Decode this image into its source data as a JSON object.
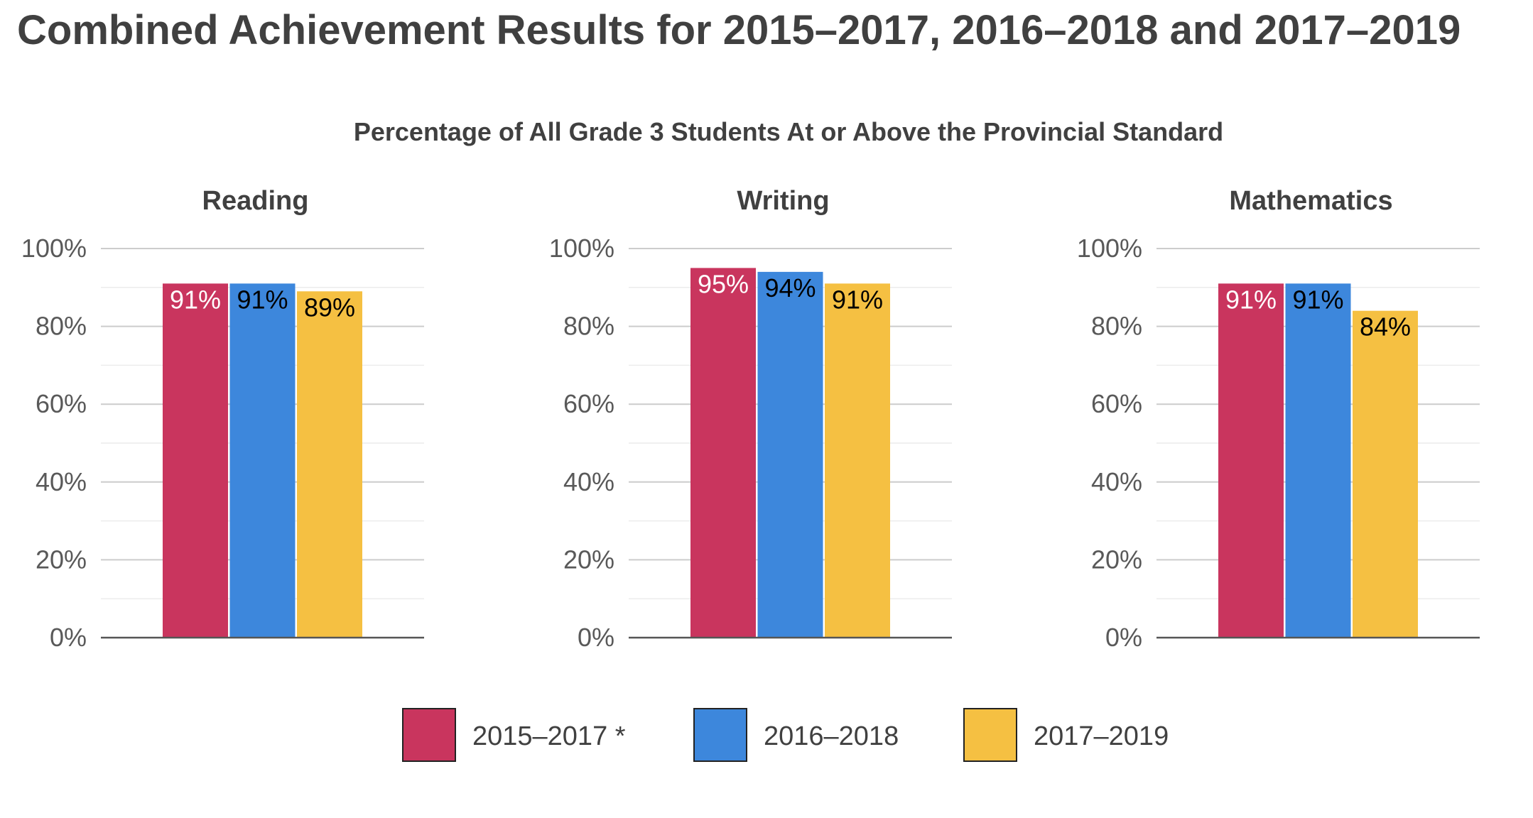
{
  "title": "Combined Achievement Results for 2015–2017, 2016–2018 and 2017–2019",
  "subtitle": "Percentage of All Grade 3 Students At or Above the Provincial Standard",
  "colors": {
    "series_1": "#c9355e",
    "series_2": "#3d87dc",
    "series_3": "#f5c042",
    "label_on_dark": "#ffffff",
    "label_on_light": "#000000"
  },
  "legend": [
    {
      "label": "2015–2017 *",
      "color": "#c9355e"
    },
    {
      "label": "2016–2018",
      "color": "#3d87dc"
    },
    {
      "label": "2017–2019",
      "color": "#f5c042"
    }
  ],
  "chart_data": [
    {
      "type": "bar",
      "title": "Reading",
      "ylim": [
        0,
        100
      ],
      "yticks": [
        "0%",
        "20%",
        "40%",
        "60%",
        "80%",
        "100%"
      ],
      "grid": true,
      "series": [
        {
          "name": "2015–2017 *",
          "values": [
            91
          ],
          "labels": [
            "91%"
          ]
        },
        {
          "name": "2016–2018",
          "values": [
            91
          ],
          "labels": [
            "91%"
          ]
        },
        {
          "name": "2017–2019",
          "values": [
            89
          ],
          "labels": [
            "89%"
          ]
        }
      ]
    },
    {
      "type": "bar",
      "title": "Writing",
      "ylim": [
        0,
        100
      ],
      "yticks": [
        "0%",
        "20%",
        "40%",
        "60%",
        "80%",
        "100%"
      ],
      "grid": true,
      "series": [
        {
          "name": "2015–2017 *",
          "values": [
            95
          ],
          "labels": [
            "95%"
          ]
        },
        {
          "name": "2016–2018",
          "values": [
            94
          ],
          "labels": [
            "94%"
          ]
        },
        {
          "name": "2017–2019",
          "values": [
            91
          ],
          "labels": [
            "91%"
          ]
        }
      ]
    },
    {
      "type": "bar",
      "title": "Mathematics",
      "ylim": [
        0,
        100
      ],
      "yticks": [
        "0%",
        "20%",
        "40%",
        "60%",
        "80%",
        "100%"
      ],
      "grid": true,
      "series": [
        {
          "name": "2015–2017 *",
          "values": [
            91
          ],
          "labels": [
            "91%"
          ]
        },
        {
          "name": "2016–2018",
          "values": [
            91
          ],
          "labels": [
            "91%"
          ]
        },
        {
          "name": "2017–2019",
          "values": [
            84
          ],
          "labels": [
            "84%"
          ]
        }
      ]
    }
  ]
}
